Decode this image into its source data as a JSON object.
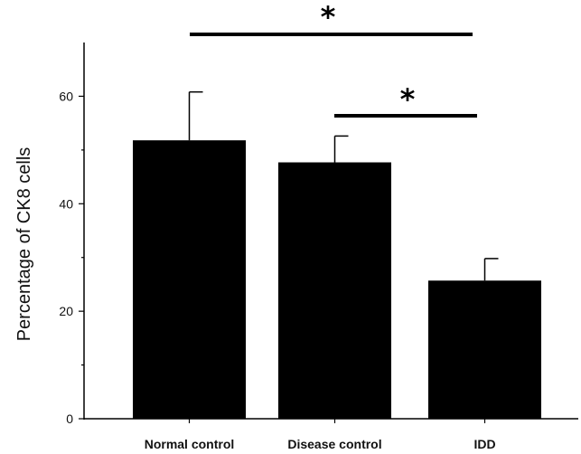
{
  "chart_data": {
    "type": "bar",
    "categories": [
      "Normal control",
      "Disease control",
      "IDD"
    ],
    "values": [
      51.8,
      47.7,
      25.7
    ],
    "errors": [
      9.0,
      4.9,
      4.1
    ],
    "ylabel": "Percentage of CK8 cells",
    "xlabel": "",
    "title": "",
    "ylim": [
      0,
      70
    ],
    "yticks": [
      0,
      20,
      40,
      60
    ],
    "grid": false,
    "bar_color": "#000000",
    "significance": [
      {
        "from": "Normal control",
        "to": "IDD",
        "label": "*"
      },
      {
        "from": "Disease control",
        "to": "IDD",
        "label": "*"
      }
    ]
  }
}
